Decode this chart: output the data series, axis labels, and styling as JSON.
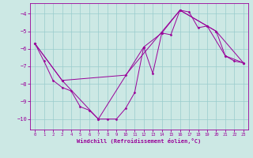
{
  "xlabel": "Windchill (Refroidissement éolien,°C)",
  "bg_color": "#cce8e4",
  "line_color": "#990099",
  "grid_color": "#99cccc",
  "xlim": [
    -0.5,
    23.5
  ],
  "ylim": [
    -10.6,
    -3.4
  ],
  "yticks": [
    -10,
    -9,
    -8,
    -7,
    -6,
    -5,
    -4
  ],
  "xticks": [
    0,
    1,
    2,
    3,
    4,
    5,
    6,
    7,
    8,
    9,
    10,
    11,
    12,
    13,
    14,
    15,
    16,
    17,
    18,
    19,
    20,
    21,
    22,
    23
  ],
  "series1": [
    [
      0,
      -5.7
    ],
    [
      1,
      -6.7
    ],
    [
      2,
      -7.8
    ],
    [
      3,
      -8.2
    ],
    [
      4,
      -8.4
    ],
    [
      5,
      -9.3
    ],
    [
      6,
      -9.5
    ],
    [
      7,
      -10.0
    ],
    [
      8,
      -10.0
    ],
    [
      9,
      -10.0
    ],
    [
      10,
      -9.4
    ],
    [
      11,
      -8.5
    ],
    [
      12,
      -5.9
    ],
    [
      13,
      -7.4
    ],
    [
      14,
      -5.1
    ],
    [
      15,
      -5.2
    ],
    [
      16,
      -3.8
    ],
    [
      17,
      -3.9
    ],
    [
      18,
      -4.8
    ],
    [
      19,
      -4.7
    ],
    [
      20,
      -5.0
    ],
    [
      21,
      -6.4
    ],
    [
      22,
      -6.7
    ],
    [
      23,
      -6.8
    ]
  ],
  "series2": [
    [
      0,
      -5.7
    ],
    [
      3,
      -7.8
    ],
    [
      10,
      -7.5
    ],
    [
      16,
      -3.8
    ],
    [
      20,
      -5.0
    ],
    [
      23,
      -6.8
    ]
  ],
  "series3": [
    [
      0,
      -5.7
    ],
    [
      3,
      -7.8
    ],
    [
      7,
      -10.0
    ],
    [
      12,
      -5.9
    ],
    [
      14,
      -5.1
    ],
    [
      16,
      -3.8
    ],
    [
      19,
      -4.7
    ],
    [
      21,
      -6.4
    ],
    [
      23,
      -6.8
    ]
  ]
}
